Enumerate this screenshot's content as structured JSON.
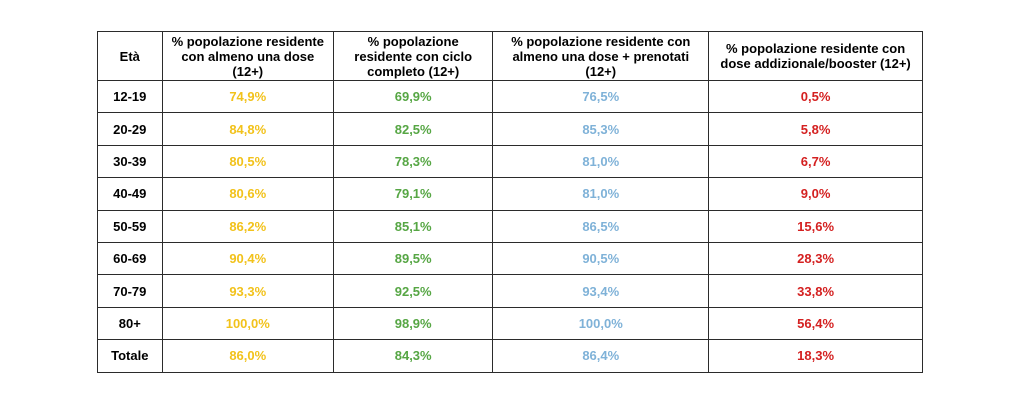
{
  "colors": {
    "dose1": "#f2c21b",
    "complete": "#56a644",
    "booked": "#7fb2d8",
    "booster": "#d42020",
    "border": "#2b2b2b"
  },
  "table": {
    "headers": [
      "Età",
      "% popolazione residente con almeno una dose (12+)",
      "% popolazione residente con ciclo completo (12+)",
      "% popolazione residente con almeno una dose + prenotati (12+)",
      "% popolazione residente con dose addizionale/booster (12+)"
    ],
    "rows": [
      {
        "age": "12-19",
        "dose1": "74,9%",
        "complete": "69,9%",
        "booked": "76,5%",
        "booster": "0,5%"
      },
      {
        "age": "20-29",
        "dose1": "84,8%",
        "complete": "82,5%",
        "booked": "85,3%",
        "booster": "5,8%"
      },
      {
        "age": "30-39",
        "dose1": "80,5%",
        "complete": "78,3%",
        "booked": "81,0%",
        "booster": "6,7%"
      },
      {
        "age": "40-49",
        "dose1": "80,6%",
        "complete": "79,1%",
        "booked": "81,0%",
        "booster": "9,0%"
      },
      {
        "age": "50-59",
        "dose1": "86,2%",
        "complete": "85,1%",
        "booked": "86,5%",
        "booster": "15,6%"
      },
      {
        "age": "60-69",
        "dose1": "90,4%",
        "complete": "89,5%",
        "booked": "90,5%",
        "booster": "28,3%"
      },
      {
        "age": "70-79",
        "dose1": "93,3%",
        "complete": "92,5%",
        "booked": "93,4%",
        "booster": "33,8%"
      },
      {
        "age": "80+",
        "dose1": "100,0%",
        "complete": "98,9%",
        "booked": "100,0%",
        "booster": "56,4%"
      },
      {
        "age": "Totale",
        "dose1": "86,0%",
        "complete": "84,3%",
        "booked": "86,4%",
        "booster": "18,3%"
      }
    ]
  }
}
